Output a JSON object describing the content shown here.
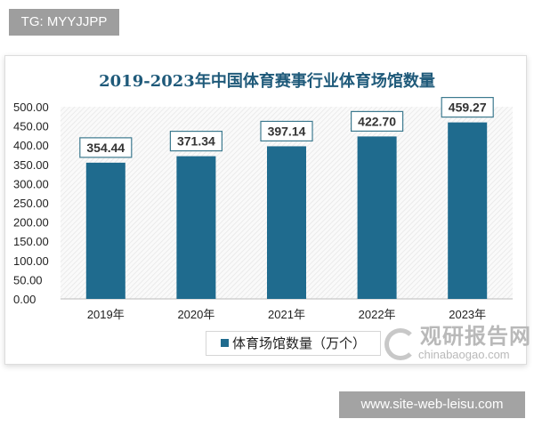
{
  "watermarks": {
    "top_left": "TG: MYYJJPP",
    "bottom_right": "www.site-web-leisu.com"
  },
  "logo": {
    "cn": "观研报告网",
    "en": "chinabaogao.com"
  },
  "chart_data": {
    "type": "bar",
    "title": "2019-2023年中国体育赛事行业体育场馆数量",
    "categories": [
      "2019年",
      "2020年",
      "2021年",
      "2022年",
      "2023年"
    ],
    "series": [
      {
        "name": "体育场馆数量（万个）",
        "values": [
          354.44,
          371.34,
          397.14,
          422.7,
          459.27
        ],
        "color": "#1f6b8e"
      }
    ],
    "data_labels": [
      "354.44",
      "371.34",
      "397.14",
      "422.70",
      "459.27"
    ],
    "ylim": [
      0,
      500
    ],
    "yticks": [
      "0.00",
      "50.00",
      "100.00",
      "150.00",
      "200.00",
      "250.00",
      "300.00",
      "350.00",
      "400.00",
      "450.00",
      "500.00"
    ],
    "title_color": "#1f5a7a",
    "legend_position": "bottom",
    "grid": false
  }
}
